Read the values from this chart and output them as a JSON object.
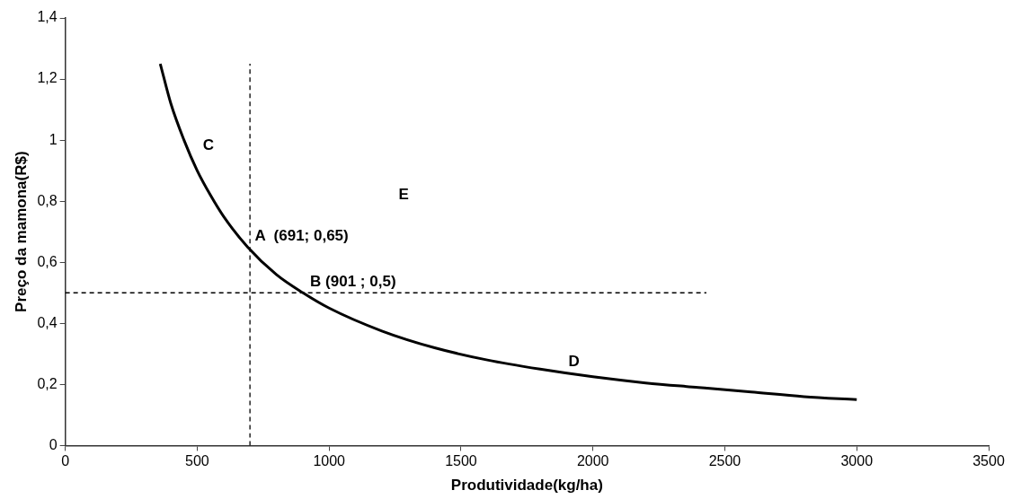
{
  "chart_data": {
    "type": "line",
    "xlabel": "Produtividade(kg/ha)",
    "ylabel": "Preço da mamona(R$)",
    "xlim": [
      0,
      3500
    ],
    "xticks": [
      0,
      500,
      1000,
      1500,
      2000,
      2500,
      3000,
      3500
    ],
    "ylim": [
      0,
      1.4
    ],
    "yticks": [
      0,
      {
        "value": 0.2,
        "label": "0,2"
      },
      {
        "value": 0.4,
        "label": "0,4"
      },
      {
        "value": 0.6,
        "label": "0,6"
      },
      {
        "value": 0.8,
        "label": "0,8"
      },
      1,
      {
        "value": 1.2,
        "label": "1,2"
      },
      {
        "value": 1.4,
        "label": "1,4"
      }
    ],
    "grid": false,
    "legend": false,
    "marker": "none",
    "series": [
      {
        "color": "#000000",
        "line_style": "solid",
        "x": [
          360,
          400,
          450,
          500,
          550,
          600,
          691,
          800,
          901,
          1000,
          1200,
          1400,
          1600,
          1800,
          2000,
          2200,
          2400,
          2600,
          2800,
          3000
        ],
        "values": [
          1.25,
          1.12,
          1.0,
          0.9,
          0.82,
          0.75,
          0.65,
          0.56,
          0.5,
          0.45,
          0.375,
          0.32,
          0.28,
          0.25,
          0.225,
          0.205,
          0.19,
          0.175,
          0.16,
          0.15
        ]
      },
      {
        "color": "#000000",
        "line_style": "dashed",
        "x": [
          700,
          700
        ],
        "values": [
          0,
          1.25
        ]
      },
      {
        "color": "#000000",
        "line_style": "dashed",
        "x": [
          0,
          2430
        ],
        "values": [
          0.5,
          0.5
        ]
      }
    ],
    "annotations": [
      "C",
      "E",
      {
        "text": "A  (691; 0,65)",
        "x": 691,
        "y": 0.65
      },
      {
        "text": "B (901 ; 0,5)",
        "x": 901,
        "y": 0.5
      },
      "D"
    ]
  }
}
